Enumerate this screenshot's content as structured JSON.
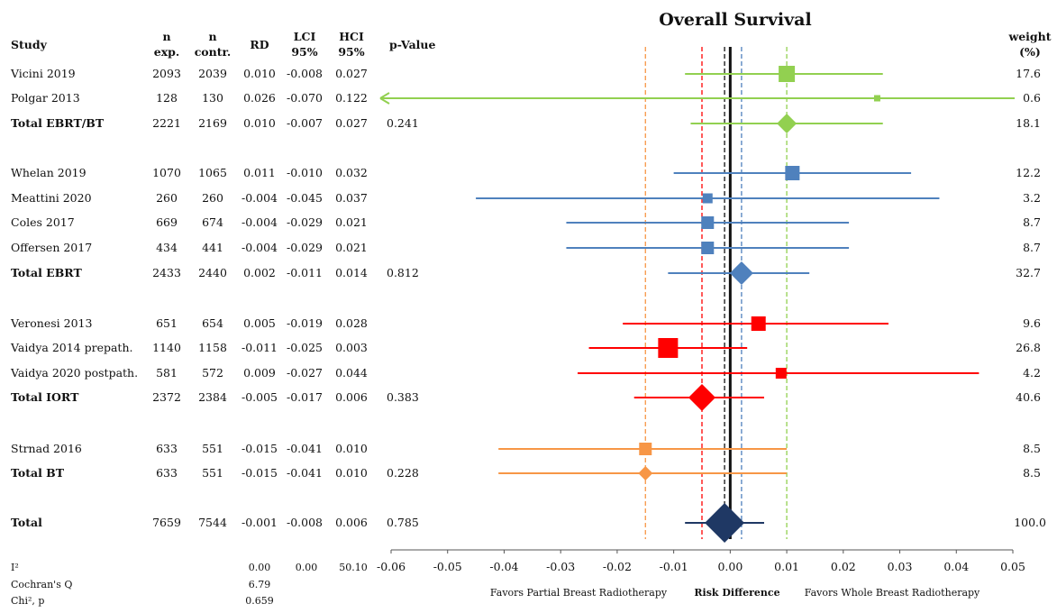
{
  "chart_data": {
    "type": "forest",
    "title": "Overall Survival",
    "headers": {
      "study": "Study",
      "n_exp_1": "n",
      "n_exp_2": "exp.",
      "n_contr_1": "n",
      "n_contr_2": "contr.",
      "rd": "RD",
      "lci_1": "LCI",
      "lci_2": "95%",
      "hci_1": "HCI",
      "hci_2": "95%",
      "p": "p-Value",
      "weight_1": "weight",
      "weight_2": "(%)"
    },
    "xlim": [
      -0.06,
      0.05
    ],
    "xticks": [
      "-0.06",
      "-0.05",
      "-0.04",
      "-0.03",
      "-0.02",
      "-0.01",
      "0.00",
      "0.01",
      "0.02",
      "0.03",
      "0.04",
      "0.05"
    ],
    "xlabel": "Risk Difference",
    "left_label": "Favors Partial Breast Radiotherapy",
    "right_label": "Favors Whole Breast Radiotherapy",
    "colors": {
      "EBRT/BT": "#92d050",
      "EBRT": "#4f81bd",
      "IORT": "#ff0000",
      "BT": "#f79646",
      "Total": "#1f3864"
    },
    "rows": [
      {
        "study": "Vicini 2019",
        "n_exp": "2093",
        "n_contr": "2039",
        "rd": "0.010",
        "lci": "-0.008",
        "hci": "0.027",
        "p": "",
        "weight": "17.6",
        "rd_v": 0.01,
        "lci_v": -0.008,
        "hci_v": 0.027,
        "group": "EBRT/BT",
        "kind": "study",
        "size": 9,
        "arrow_left": false
      },
      {
        "study": "Polgar 2013",
        "n_exp": "128",
        "n_contr": "130",
        "rd": "0.026",
        "lci": "-0.070",
        "hci": "0.122",
        "p": "",
        "weight": "0.6",
        "rd_v": 0.026,
        "lci_v": -0.07,
        "hci_v": 0.122,
        "group": "EBRT/BT",
        "kind": "study",
        "size": 3.5,
        "arrow_left": true
      },
      {
        "study": "Total EBRT/BT",
        "n_exp": "2221",
        "n_contr": "2169",
        "rd": "0.010",
        "lci": "-0.007",
        "hci": "0.027",
        "p": "0.241",
        "weight": "18.1",
        "rd_v": 0.01,
        "lci_v": -0.007,
        "hci_v": 0.027,
        "group": "EBRT/BT",
        "kind": "total",
        "size": 11
      },
      {
        "study": "Whelan 2019",
        "n_exp": "1070",
        "n_contr": "1065",
        "rd": "0.011",
        "lci": "-0.010",
        "hci": "0.032",
        "p": "",
        "weight": "12.2",
        "rd_v": 0.011,
        "lci_v": -0.01,
        "hci_v": 0.032,
        "group": "EBRT",
        "kind": "study",
        "size": 8
      },
      {
        "study": "Meattini 2020",
        "n_exp": "260",
        "n_contr": "260",
        "rd": "-0.004",
        "lci": "-0.045",
        "hci": "0.037",
        "p": "",
        "weight": "3.2",
        "rd_v": -0.004,
        "lci_v": -0.045,
        "hci_v": 0.037,
        "group": "EBRT",
        "kind": "study",
        "size": 5.5
      },
      {
        "study": "Coles 2017",
        "n_exp": "669",
        "n_contr": "674",
        "rd": "-0.004",
        "lci": "-0.029",
        "hci": "0.021",
        "p": "",
        "weight": "8.7",
        "rd_v": -0.004,
        "lci_v": -0.029,
        "hci_v": 0.021,
        "group": "EBRT",
        "kind": "study",
        "size": 7
      },
      {
        "study": "Offersen 2017",
        "n_exp": "434",
        "n_contr": "441",
        "rd": "-0.004",
        "lci": "-0.029",
        "hci": "0.021",
        "p": "",
        "weight": "8.7",
        "rd_v": -0.004,
        "lci_v": -0.029,
        "hci_v": 0.021,
        "group": "EBRT",
        "kind": "study",
        "size": 7
      },
      {
        "study": "Total EBRT",
        "n_exp": "2433",
        "n_contr": "2440",
        "rd": "0.002",
        "lci": "-0.011",
        "hci": "0.014",
        "p": "0.812",
        "weight": "32.7",
        "rd_v": 0.002,
        "lci_v": -0.011,
        "hci_v": 0.014,
        "group": "EBRT",
        "kind": "total",
        "size": 13
      },
      {
        "study": "Veronesi 2013",
        "n_exp": "651",
        "n_contr": "654",
        "rd": "0.005",
        "lci": "-0.019",
        "hci": "0.028",
        "p": "",
        "weight": "9.6",
        "rd_v": 0.005,
        "lci_v": -0.019,
        "hci_v": 0.028,
        "group": "IORT",
        "kind": "study",
        "size": 8
      },
      {
        "study": "Vaidya 2014 prepath.",
        "n_exp": "1140",
        "n_contr": "1158",
        "rd": "-0.011",
        "lci": "-0.025",
        "hci": "0.003",
        "p": "",
        "weight": "26.8",
        "rd_v": -0.011,
        "lci_v": -0.025,
        "hci_v": 0.003,
        "group": "IORT",
        "kind": "study",
        "size": 11
      },
      {
        "study": "Vaidya 2020 postpath.",
        "n_exp": "581",
        "n_contr": "572",
        "rd": "0.009",
        "lci": "-0.027",
        "hci": "0.044",
        "p": "",
        "weight": "4.2",
        "rd_v": 0.009,
        "lci_v": -0.027,
        "hci_v": 0.044,
        "group": "IORT",
        "kind": "study",
        "size": 6
      },
      {
        "study": "Total IORT",
        "n_exp": "2372",
        "n_contr": "2384",
        "rd": "-0.005",
        "lci": "-0.017",
        "hci": "0.006",
        "p": "0.383",
        "weight": "40.6",
        "rd_v": -0.005,
        "lci_v": -0.017,
        "hci_v": 0.006,
        "group": "IORT",
        "kind": "total",
        "size": 15
      },
      {
        "study": "Strnad 2016",
        "n_exp": "633",
        "n_contr": "551",
        "rd": "-0.015",
        "lci": "-0.041",
        "hci": "0.010",
        "p": "",
        "weight": "8.5",
        "rd_v": -0.015,
        "lci_v": -0.041,
        "hci_v": 0.01,
        "group": "BT",
        "kind": "study",
        "size": 7
      },
      {
        "study": "Total BT",
        "n_exp": "633",
        "n_contr": "551",
        "rd": "-0.015",
        "lci": "-0.041",
        "hci": "0.010",
        "p": "0.228",
        "weight": "8.5",
        "rd_v": -0.015,
        "lci_v": -0.041,
        "hci_v": 0.01,
        "group": "BT",
        "kind": "total",
        "size": 8
      },
      {
        "study": "Total",
        "n_exp": "7659",
        "n_contr": "7544",
        "rd": "-0.001",
        "lci": "-0.008",
        "hci": "0.006",
        "p": "0.785",
        "weight": "100.0",
        "rd_v": -0.001,
        "lci_v": -0.008,
        "hci_v": 0.006,
        "group": "Total",
        "kind": "overall",
        "size": 22
      }
    ],
    "reference_lines": [
      {
        "x": -0.015,
        "color": "#f79646",
        "style": "dashed"
      },
      {
        "x": -0.005,
        "color": "#ff0000",
        "style": "dashed"
      },
      {
        "x": -0.001,
        "color": "#111111",
        "style": "dashed"
      },
      {
        "x": 0.0,
        "color": "#111111",
        "style": "solid"
      },
      {
        "x": 0.002,
        "color": "#4f81bd",
        "style": "dashed"
      },
      {
        "x": 0.01,
        "color": "#92d050",
        "style": "dashed"
      }
    ],
    "stats": [
      {
        "label": "I²",
        "a": "0.00",
        "b": "0.00",
        "c": "50.10"
      },
      {
        "label": "Cochran's Q",
        "a": "6.79",
        "b": "",
        "c": ""
      },
      {
        "label": "Chi², p",
        "a": "0.659",
        "b": "",
        "c": ""
      }
    ]
  }
}
